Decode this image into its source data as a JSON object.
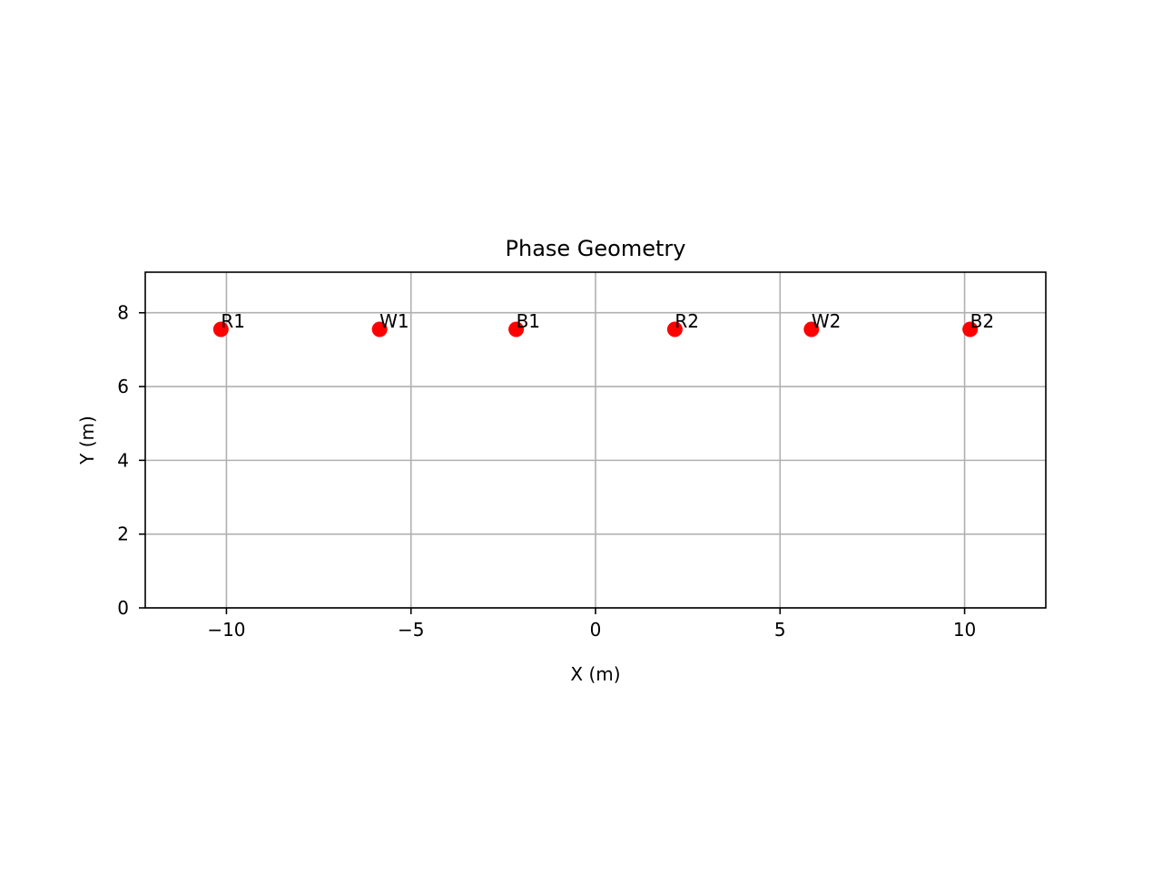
{
  "chart_data": {
    "type": "scatter",
    "title": "Phase Geometry",
    "xlabel": "X (m)",
    "ylabel": "Y (m)",
    "xlim": [
      -12.2,
      12.2
    ],
    "ylim": [
      0,
      9.1
    ],
    "xticks": [
      -10,
      -5,
      0,
      5,
      10
    ],
    "xtick_labels": [
      "−10",
      "−5",
      "0",
      "5",
      "10"
    ],
    "yticks": [
      0,
      2,
      4,
      6,
      8
    ],
    "ytick_labels": [
      "0",
      "2",
      "4",
      "6",
      "8"
    ],
    "grid": true,
    "marker_color": "#ff0000",
    "points": [
      {
        "label": "R1",
        "x": -10.15,
        "y": 7.55
      },
      {
        "label": "W1",
        "x": -5.85,
        "y": 7.55
      },
      {
        "label": "B1",
        "x": -2.15,
        "y": 7.55
      },
      {
        "label": "R2",
        "x": 2.15,
        "y": 7.55
      },
      {
        "label": "W2",
        "x": 5.85,
        "y": 7.55
      },
      {
        "label": "B2",
        "x": 10.15,
        "y": 7.55
      }
    ]
  }
}
